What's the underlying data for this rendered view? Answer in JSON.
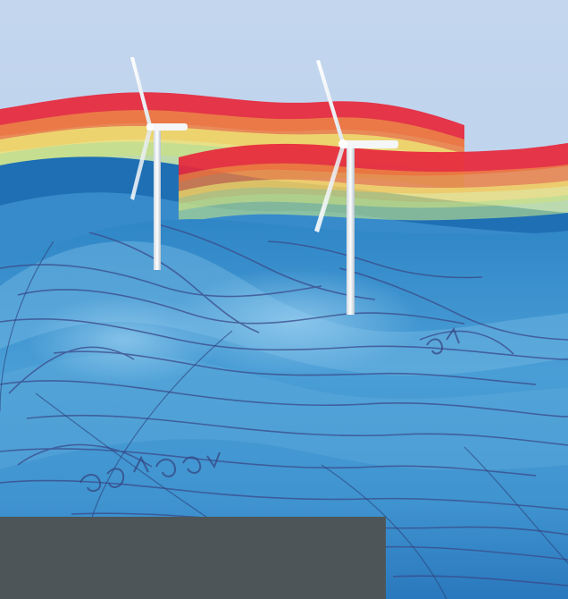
{
  "image": {
    "subject": "",
    "colors": {
      "sky": "#bcd3ec",
      "sea_light": "#6fb4e0",
      "sea_mid": "#2f86c6",
      "sea_dark": "#1760a8",
      "contour_line": "#3a4a8a",
      "band_red": "#e8283c",
      "band_orange": "#f07a3a",
      "band_yellow": "#f3e36a",
      "band_green": "#b9de8e",
      "turbine": "#f4f6f8",
      "footer_panel": "#4e5558"
    },
    "turbine_count": 2,
    "footer_panel": {
      "text": ""
    }
  }
}
